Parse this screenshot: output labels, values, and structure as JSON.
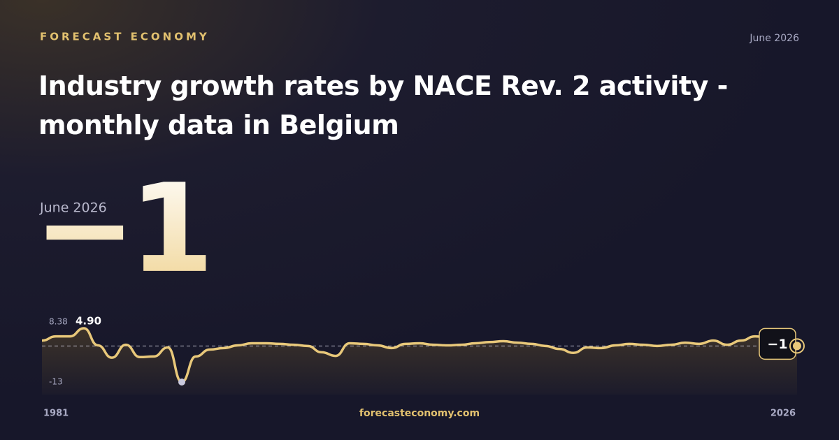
{
  "brand": "FORECAST ECONOMY",
  "date": "June 2026",
  "title": "Industry growth rates by NACE Rev. 2 activity - monthly data in Belgium",
  "headline": {
    "label": "June 2026",
    "value": -1,
    "value_label": "−1"
  },
  "footer": "forecasteconomy.com",
  "chart_data": {
    "type": "line",
    "color": "#e8c87a",
    "x_labels": [
      "1981",
      "2026"
    ],
    "ylim": [
      -13,
      8.38
    ],
    "yticks": [
      8.38,
      -13
    ],
    "peak_label": "4.90",
    "values": [
      0.8,
      2.2,
      2.2,
      4.9,
      -0.8,
      -4.9,
      -0.6,
      -4.7,
      -4.5,
      -1.5,
      -13,
      -4.5,
      -2.2,
      -1.7,
      -0.8,
      -0.1,
      -0.1,
      -0.3,
      -0.6,
      -1.0,
      -3.1,
      -4.3,
      -0.1,
      -0.3,
      -0.8,
      -1.7,
      -0.3,
      -0.1,
      -0.6,
      -0.8,
      -0.6,
      -0.1,
      0.3,
      0.6,
      0.1,
      -0.3,
      -1.0,
      -2.0,
      -3.3,
      -1.5,
      -1.7,
      -0.8,
      -0.3,
      -0.6,
      -1.0,
      -0.6,
      0.1,
      -0.3,
      0.8,
      -0.6,
      0.8,
      2.2,
      1.7,
      0.1,
      -1
    ]
  }
}
